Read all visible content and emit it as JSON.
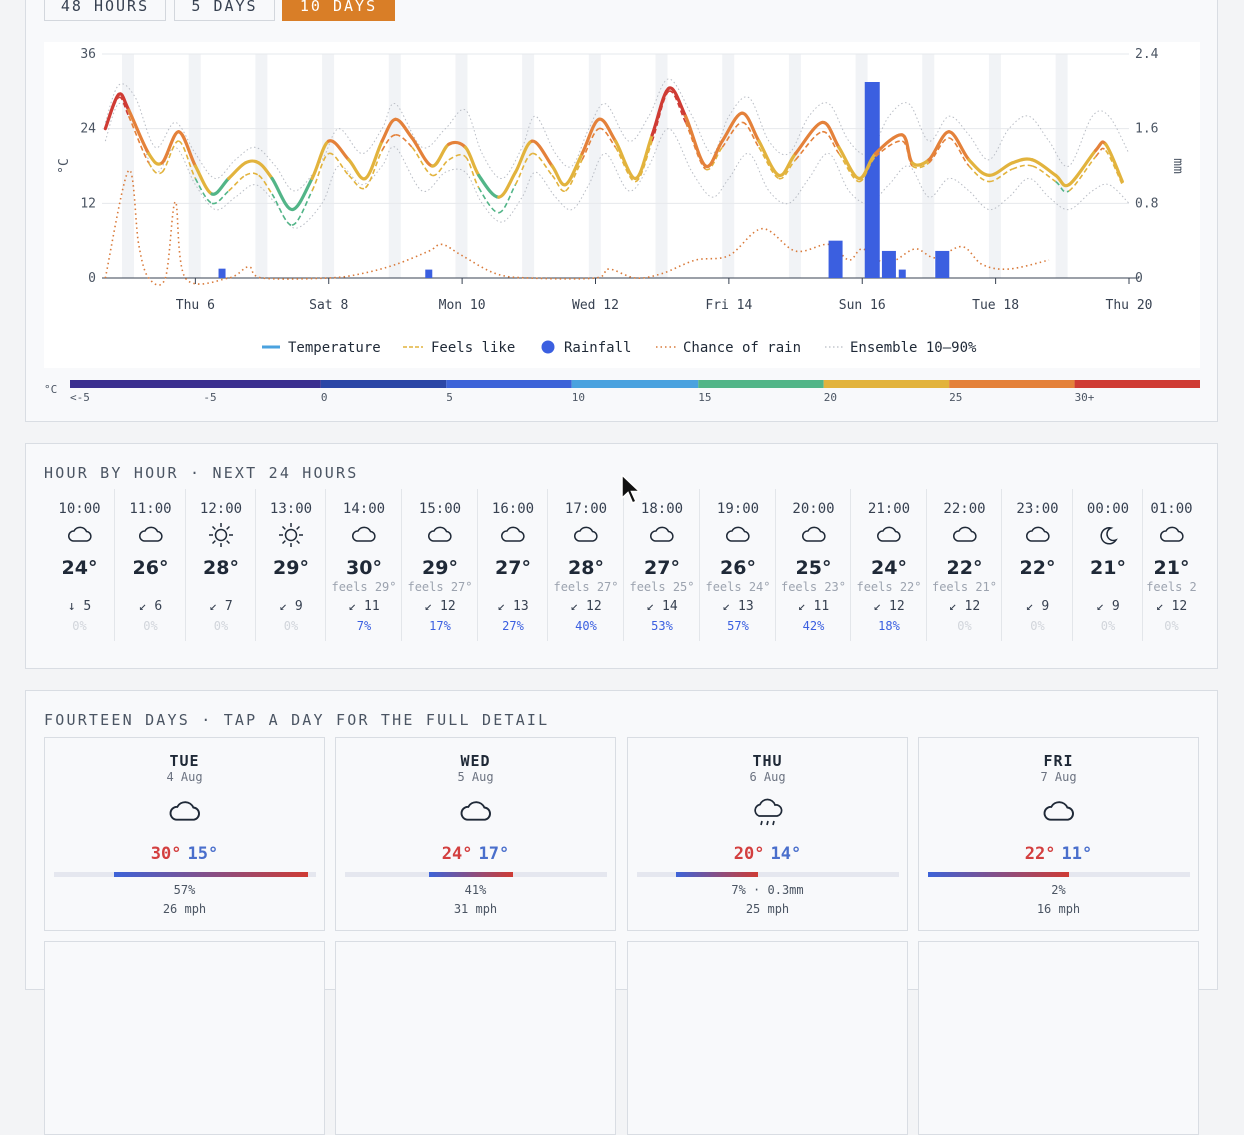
{
  "range_tabs": [
    {
      "label": "48 HOURS",
      "active": false
    },
    {
      "label": "5 DAYS",
      "active": false
    },
    {
      "label": "10 DAYS",
      "active": true
    }
  ],
  "chart_data": {
    "type": "line",
    "y_left_label": "°C",
    "y_right_label": "mm",
    "y_left_ticks": [
      "0",
      "12",
      "24",
      "36"
    ],
    "y_left_range": [
      0,
      36
    ],
    "y_right_ticks": [
      "0",
      "0.8",
      "1.6",
      "2.4"
    ],
    "y_right_range": [
      0,
      2.4
    ],
    "x_ticks": [
      "Thu 6",
      "Sat 8",
      "Mon 10",
      "Wed 12",
      "Fri 14",
      "Sun 16",
      "Tue 18",
      "Thu 20"
    ],
    "x_range_days": [
      4.6,
      20
    ],
    "grid": true,
    "legend_position": "bottom",
    "legend": [
      "Temperature",
      "Feels like",
      "Rainfall",
      "Chance of rain",
      "Ensemble 10–90%"
    ],
    "temperature_series": [
      [
        4.65,
        24
      ],
      [
        4.85,
        29.5
      ],
      [
        5.0,
        27
      ],
      [
        5.3,
        20
      ],
      [
        5.5,
        18.5
      ],
      [
        5.75,
        23.5
      ],
      [
        6.0,
        18
      ],
      [
        6.25,
        13.5
      ],
      [
        6.5,
        16
      ],
      [
        6.75,
        18.5
      ],
      [
        6.95,
        18.5
      ],
      [
        7.15,
        16
      ],
      [
        7.45,
        11
      ],
      [
        7.75,
        16
      ],
      [
        8.0,
        22
      ],
      [
        8.3,
        19
      ],
      [
        8.55,
        16
      ],
      [
        8.8,
        22
      ],
      [
        9.0,
        25.5
      ],
      [
        9.25,
        22.5
      ],
      [
        9.55,
        18
      ],
      [
        9.8,
        21.5
      ],
      [
        10.05,
        21
      ],
      [
        10.25,
        16.5
      ],
      [
        10.55,
        13
      ],
      [
        10.8,
        17
      ],
      [
        11.05,
        22
      ],
      [
        11.35,
        18
      ],
      [
        11.55,
        15
      ],
      [
        11.8,
        20
      ],
      [
        12.05,
        25.5
      ],
      [
        12.3,
        22
      ],
      [
        12.6,
        16
      ],
      [
        12.85,
        23
      ],
      [
        13.1,
        30.5
      ],
      [
        13.35,
        26
      ],
      [
        13.65,
        18
      ],
      [
        13.9,
        22
      ],
      [
        14.2,
        26.5
      ],
      [
        14.45,
        22
      ],
      [
        14.75,
        16.5
      ],
      [
        15.0,
        20
      ],
      [
        15.4,
        25
      ],
      [
        15.65,
        21
      ],
      [
        15.95,
        16
      ],
      [
        16.2,
        20
      ],
      [
        16.6,
        23
      ],
      [
        16.75,
        18.5
      ],
      [
        17.0,
        19
      ],
      [
        17.3,
        23.5
      ],
      [
        17.6,
        19
      ],
      [
        17.9,
        16.5
      ],
      [
        18.25,
        18.5
      ],
      [
        18.55,
        19
      ],
      [
        18.9,
        16.5
      ],
      [
        19.1,
        15
      ],
      [
        19.5,
        20.5
      ],
      [
        19.65,
        21.5
      ],
      [
        19.9,
        15.5
      ]
    ],
    "feels_like_series": [
      [
        4.65,
        24
      ],
      [
        4.85,
        29
      ],
      [
        5.0,
        26
      ],
      [
        5.3,
        18.5
      ],
      [
        5.5,
        17
      ],
      [
        5.75,
        22
      ],
      [
        6.0,
        16
      ],
      [
        6.25,
        12
      ],
      [
        6.5,
        14
      ],
      [
        6.75,
        16.5
      ],
      [
        6.95,
        16.5
      ],
      [
        7.15,
        13.5
      ],
      [
        7.45,
        8.5
      ],
      [
        7.75,
        14
      ],
      [
        8.0,
        20
      ],
      [
        8.3,
        16.5
      ],
      [
        8.55,
        14.5
      ],
      [
        8.8,
        20.5
      ],
      [
        9.0,
        23
      ],
      [
        9.25,
        21
      ],
      [
        9.55,
        16.5
      ],
      [
        9.8,
        19
      ],
      [
        10.05,
        19.5
      ],
      [
        10.25,
        14.5
      ],
      [
        10.55,
        10.5
      ],
      [
        10.8,
        15
      ],
      [
        11.05,
        20
      ],
      [
        11.35,
        16.5
      ],
      [
        11.55,
        14
      ],
      [
        11.8,
        19
      ],
      [
        12.05,
        24
      ],
      [
        12.3,
        21
      ],
      [
        12.6,
        15.5
      ],
      [
        12.85,
        22
      ],
      [
        13.1,
        30
      ],
      [
        13.35,
        25
      ],
      [
        13.65,
        17.5
      ],
      [
        13.9,
        21
      ],
      [
        14.2,
        25
      ],
      [
        14.45,
        21
      ],
      [
        14.75,
        16
      ],
      [
        15.0,
        19
      ],
      [
        15.4,
        23.5
      ],
      [
        15.65,
        20
      ],
      [
        15.95,
        15.5
      ],
      [
        16.2,
        19.5
      ],
      [
        16.6,
        22
      ],
      [
        16.75,
        18
      ],
      [
        17.0,
        18.5
      ],
      [
        17.3,
        22.5
      ],
      [
        17.6,
        18
      ],
      [
        17.9,
        15.5
      ],
      [
        18.25,
        17.5
      ],
      [
        18.55,
        18
      ],
      [
        18.9,
        15.5
      ],
      [
        19.1,
        14
      ],
      [
        19.5,
        19.5
      ],
      [
        19.65,
        20.5
      ],
      [
        19.9,
        15
      ]
    ],
    "rainfall_bars_mm": [
      [
        6.4,
        0.1
      ],
      [
        9.5,
        0.09
      ],
      [
        15.6,
        0.4
      ],
      [
        16.15,
        2.1
      ],
      [
        16.4,
        0.29
      ],
      [
        16.6,
        0.09
      ],
      [
        17.2,
        0.29
      ]
    ],
    "chance_of_rain_pct": [
      [
        4.65,
        0
      ],
      [
        5.0,
        48
      ],
      [
        5.15,
        15
      ],
      [
        5.3,
        0
      ],
      [
        5.55,
        0
      ],
      [
        5.7,
        34
      ],
      [
        5.85,
        0
      ],
      [
        6.5,
        0
      ],
      [
        6.8,
        5
      ],
      [
        7.0,
        0
      ],
      [
        8.0,
        0
      ],
      [
        8.5,
        2
      ],
      [
        9.0,
        6
      ],
      [
        9.5,
        12
      ],
      [
        9.7,
        15
      ],
      [
        10.0,
        10
      ],
      [
        10.5,
        2
      ],
      [
        11.0,
        0
      ],
      [
        12.0,
        0
      ],
      [
        12.2,
        4
      ],
      [
        12.6,
        0
      ],
      [
        13.0,
        2
      ],
      [
        13.5,
        8
      ],
      [
        14.0,
        10
      ],
      [
        14.5,
        22
      ],
      [
        15.0,
        12
      ],
      [
        15.5,
        15
      ],
      [
        15.8,
        8
      ],
      [
        16.0,
        13
      ],
      [
        16.3,
        7
      ],
      [
        16.5,
        8
      ],
      [
        16.8,
        13
      ],
      [
        17.1,
        9
      ],
      [
        17.5,
        14
      ],
      [
        17.8,
        6
      ],
      [
        18.2,
        4
      ],
      [
        18.8,
        8
      ]
    ],
    "ensemble_upper": [
      [
        4.65,
        25
      ],
      [
        4.85,
        31
      ],
      [
        5.1,
        29
      ],
      [
        5.4,
        21
      ],
      [
        5.7,
        25
      ],
      [
        6.0,
        20
      ],
      [
        6.3,
        16
      ],
      [
        6.6,
        19
      ],
      [
        6.9,
        21
      ],
      [
        7.2,
        18
      ],
      [
        7.5,
        14
      ],
      [
        7.9,
        19
      ],
      [
        8.15,
        24
      ],
      [
        8.5,
        20
      ],
      [
        8.8,
        24
      ],
      [
        9.0,
        28
      ],
      [
        9.4,
        21
      ],
      [
        9.75,
        24
      ],
      [
        10.05,
        27
      ],
      [
        10.3,
        20
      ],
      [
        10.6,
        16
      ],
      [
        10.9,
        21
      ],
      [
        11.1,
        26
      ],
      [
        11.4,
        20
      ],
      [
        11.65,
        18
      ],
      [
        11.9,
        24
      ],
      [
        12.15,
        28
      ],
      [
        12.5,
        22
      ],
      [
        12.8,
        26
      ],
      [
        13.1,
        32
      ],
      [
        13.45,
        26
      ],
      [
        13.75,
        20
      ],
      [
        14.0,
        26
      ],
      [
        14.3,
        29
      ],
      [
        14.6,
        22
      ],
      [
        14.9,
        20
      ],
      [
        15.2,
        26
      ],
      [
        15.5,
        28
      ],
      [
        15.8,
        22
      ],
      [
        16.1,
        20
      ],
      [
        16.4,
        26
      ],
      [
        16.7,
        28
      ],
      [
        17.0,
        22
      ],
      [
        17.3,
        26
      ],
      [
        17.6,
        23
      ],
      [
        17.9,
        19
      ],
      [
        18.2,
        24
      ],
      [
        18.5,
        26
      ],
      [
        18.8,
        22
      ],
      [
        19.1,
        18
      ],
      [
        19.45,
        26
      ],
      [
        19.7,
        26
      ],
      [
        20.0,
        20
      ]
    ],
    "ensemble_lower": [
      [
        4.65,
        22
      ],
      [
        4.85,
        28
      ],
      [
        5.1,
        25
      ],
      [
        5.4,
        17
      ],
      [
        5.7,
        21
      ],
      [
        6.0,
        15
      ],
      [
        6.3,
        11
      ],
      [
        6.6,
        13
      ],
      [
        6.9,
        15
      ],
      [
        7.2,
        12
      ],
      [
        7.5,
        8
      ],
      [
        7.9,
        12
      ],
      [
        8.15,
        18
      ],
      [
        8.5,
        15
      ],
      [
        8.8,
        18
      ],
      [
        9.0,
        21
      ],
      [
        9.4,
        14
      ],
      [
        9.75,
        17
      ],
      [
        10.05,
        17
      ],
      [
        10.3,
        12
      ],
      [
        10.6,
        9
      ],
      [
        10.9,
        13
      ],
      [
        11.1,
        17
      ],
      [
        11.4,
        13
      ],
      [
        11.65,
        11
      ],
      [
        11.9,
        15
      ],
      [
        12.15,
        20
      ],
      [
        12.5,
        14
      ],
      [
        12.8,
        18
      ],
      [
        13.1,
        24
      ],
      [
        13.45,
        17
      ],
      [
        13.75,
        13
      ],
      [
        14.0,
        16
      ],
      [
        14.3,
        20
      ],
      [
        14.6,
        14
      ],
      [
        14.9,
        12
      ],
      [
        15.2,
        16
      ],
      [
        15.5,
        20
      ],
      [
        15.8,
        14
      ],
      [
        16.1,
        12
      ],
      [
        16.4,
        15
      ],
      [
        16.7,
        18
      ],
      [
        17.0,
        13
      ],
      [
        17.3,
        16
      ],
      [
        17.6,
        14
      ],
      [
        17.9,
        11
      ],
      [
        18.2,
        13
      ],
      [
        18.5,
        16
      ],
      [
        18.8,
        13
      ],
      [
        19.1,
        11
      ],
      [
        19.45,
        14
      ],
      [
        19.7,
        15
      ],
      [
        20.0,
        12
      ]
    ]
  },
  "color_scale": {
    "unit": "°C",
    "labels": [
      "<-5",
      "-5",
      "0",
      "5",
      "10",
      "15",
      "20",
      "25",
      "30+"
    ],
    "colors": [
      "#3b2f8f",
      "#2b46a6",
      "#3d63d8",
      "#4aa2df",
      "#52b588",
      "#e2b33d",
      "#e4813a",
      "#cf3b34",
      "#7d2b22"
    ]
  },
  "hourly": {
    "title": "HOUR BY HOUR · NEXT 24 HOURS",
    "items": [
      {
        "time": "10:00",
        "icon": "cloud",
        "temp": "24°",
        "feels": "",
        "wind_arrow": "↓",
        "wind": "5",
        "rain": "0%"
      },
      {
        "time": "11:00",
        "icon": "cloud",
        "temp": "26°",
        "feels": "",
        "wind_arrow": "↙",
        "wind": "6",
        "rain": "0%"
      },
      {
        "time": "12:00",
        "icon": "sun",
        "temp": "28°",
        "feels": "",
        "wind_arrow": "↙",
        "wind": "7",
        "rain": "0%"
      },
      {
        "time": "13:00",
        "icon": "sun",
        "temp": "29°",
        "feels": "",
        "wind_arrow": "↙",
        "wind": "9",
        "rain": "0%"
      },
      {
        "time": "14:00",
        "icon": "cloud",
        "temp": "30°",
        "feels": "feels 29°",
        "wind_arrow": "↙",
        "wind": "11",
        "rain": "7%"
      },
      {
        "time": "15:00",
        "icon": "cloud",
        "temp": "29°",
        "feels": "feels 27°",
        "wind_arrow": "↙",
        "wind": "12",
        "rain": "17%"
      },
      {
        "time": "16:00",
        "icon": "cloud",
        "temp": "27°",
        "feels": "",
        "wind_arrow": "↙",
        "wind": "13",
        "rain": "27%"
      },
      {
        "time": "17:00",
        "icon": "cloud",
        "temp": "28°",
        "feels": "feels 27°",
        "wind_arrow": "↙",
        "wind": "12",
        "rain": "40%"
      },
      {
        "time": "18:00",
        "icon": "cloud",
        "temp": "27°",
        "feels": "feels 25°",
        "wind_arrow": "↙",
        "wind": "14",
        "rain": "53%"
      },
      {
        "time": "19:00",
        "icon": "cloud",
        "temp": "26°",
        "feels": "feels 24°",
        "wind_arrow": "↙",
        "wind": "13",
        "rain": "57%"
      },
      {
        "time": "20:00",
        "icon": "cloud",
        "temp": "25°",
        "feels": "feels 23°",
        "wind_arrow": "↙",
        "wind": "11",
        "rain": "42%"
      },
      {
        "time": "21:00",
        "icon": "cloud",
        "temp": "24°",
        "feels": "feels 22°",
        "wind_arrow": "↙",
        "wind": "12",
        "rain": "18%"
      },
      {
        "time": "22:00",
        "icon": "cloud",
        "temp": "22°",
        "feels": "feels 21°",
        "wind_arrow": "↙",
        "wind": "12",
        "rain": "0%"
      },
      {
        "time": "23:00",
        "icon": "cloud",
        "temp": "22°",
        "feels": "",
        "wind_arrow": "↙",
        "wind": "9",
        "rain": "0%"
      },
      {
        "time": "00:00",
        "icon": "moon",
        "temp": "21°",
        "feels": "",
        "wind_arrow": "↙",
        "wind": "9",
        "rain": "0%"
      },
      {
        "time": "01:00",
        "icon": "cloud",
        "temp": "21°",
        "feels": "feels 2",
        "wind_arrow": "↙",
        "wind": "12",
        "rain": "0%"
      }
    ]
  },
  "daily": {
    "title": "FOURTEEN DAYS · TAP A DAY FOR THE FULL DETAIL",
    "items": [
      {
        "day": "TUE",
        "date": "4 Aug",
        "icon": "cloud",
        "hi": "30°",
        "lo": "15°",
        "precip": "57%",
        "wind": "26 mph",
        "bar_start": 0.23,
        "bar_end": 0.97
      },
      {
        "day": "WED",
        "date": "5 Aug",
        "icon": "cloud",
        "hi": "24°",
        "lo": "17°",
        "precip": "41%",
        "wind": "31 mph",
        "bar_start": 0.32,
        "bar_end": 0.64
      },
      {
        "day": "THU",
        "date": "6 Aug",
        "icon": "rain-cloud",
        "hi": "20°",
        "lo": "14°",
        "precip": "7% · 0.3mm",
        "wind": "25 mph",
        "bar_start": 0.15,
        "bar_end": 0.46
      },
      {
        "day": "FRI",
        "date": "7 Aug",
        "icon": "cloud",
        "hi": "22°",
        "lo": "11°",
        "precip": "2%",
        "wind": "16 mph",
        "bar_start": 0.0,
        "bar_end": 0.54
      }
    ]
  }
}
